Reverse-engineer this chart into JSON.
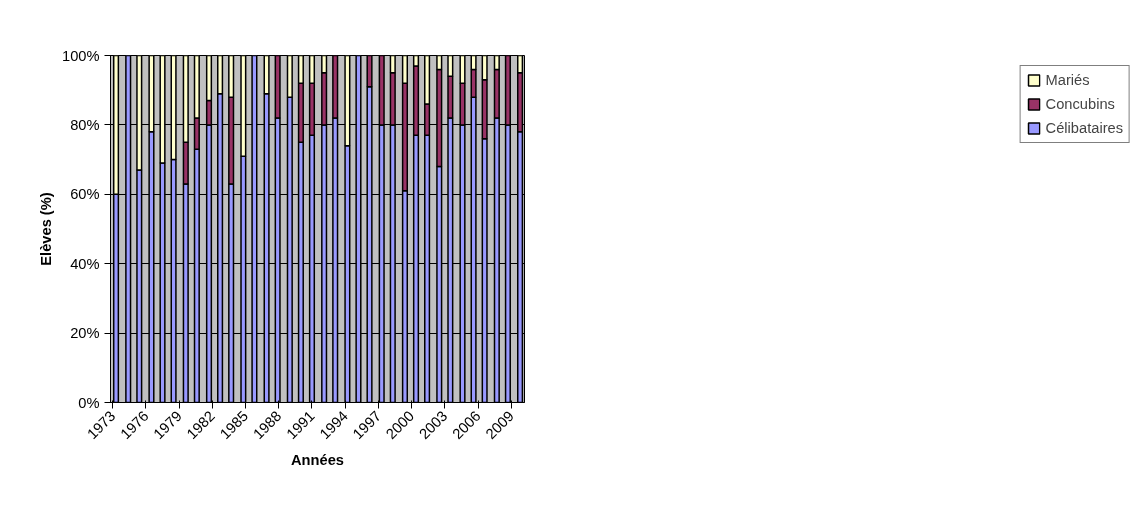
{
  "chart_data": {
    "type": "bar",
    "stacked": true,
    "xlabel": "Années",
    "ylabel": "Elèves (%)",
    "x": [
      1973.3,
      1974.4,
      1975.4,
      1976.5,
      1977.5,
      1978.5,
      1979.6,
      1980.6,
      1981.7,
      1982.7,
      1983.7,
      1984.8,
      1985.8,
      1986.9,
      1987.9,
      1989.0,
      1990.0,
      1991.0,
      1992.1,
      1993.1,
      1994.2,
      1995.2,
      1996.2,
      1997.3,
      1998.3,
      1999.4,
      2000.4,
      2001.4,
      2002.5,
      2003.5,
      2004.6,
      2005.6,
      2006.6,
      2007.7,
      2008.7,
      2009.8
    ],
    "xlim": [
      1972.8,
      2010.2
    ],
    "xticks": [
      1973,
      1976,
      1979,
      1982,
      1985,
      1988,
      1991,
      1994,
      1997,
      2000,
      2003,
      2006,
      2009
    ],
    "ylim": [
      0,
      100
    ],
    "yticks": [
      {
        "value": 0,
        "label": "0%"
      },
      {
        "value": 20,
        "label": "20%"
      },
      {
        "value": 40,
        "label": "40%"
      },
      {
        "value": 60,
        "label": "60%"
      },
      {
        "value": 80,
        "label": "80%"
      },
      {
        "value": 100,
        "label": "100%"
      }
    ],
    "grid": "y",
    "legend": "right",
    "series": [
      {
        "name": "Célibataires",
        "color": "#9999ff",
        "values": [
          60,
          100,
          67,
          78,
          69,
          70,
          63,
          73,
          80,
          89,
          63,
          71,
          100,
          89,
          82,
          88,
          75,
          77,
          80,
          82,
          74,
          100,
          91,
          80,
          80,
          61,
          77,
          77,
          68,
          82,
          80,
          88,
          76,
          82,
          80,
          78
        ]
      },
      {
        "name": "Concubins",
        "color": "#993366",
        "values": [
          0,
          0,
          0,
          0,
          0,
          0,
          12,
          9,
          7,
          0,
          25,
          0,
          0,
          0,
          18,
          0,
          17,
          15,
          15,
          18,
          0,
          0,
          9,
          20,
          15,
          31,
          20,
          9,
          28,
          12,
          12,
          8,
          17,
          14,
          20,
          17
        ]
      },
      {
        "name": "Mariés",
        "color": "#ffffcc",
        "values": [
          40,
          0,
          33,
          22,
          31,
          30,
          25,
          18,
          13,
          11,
          12,
          29,
          0,
          11,
          0,
          12,
          8,
          8,
          5,
          0,
          26,
          0,
          0,
          0,
          5,
          8,
          3,
          14,
          4,
          6,
          8,
          4,
          7,
          4,
          0,
          5
        ]
      }
    ]
  }
}
